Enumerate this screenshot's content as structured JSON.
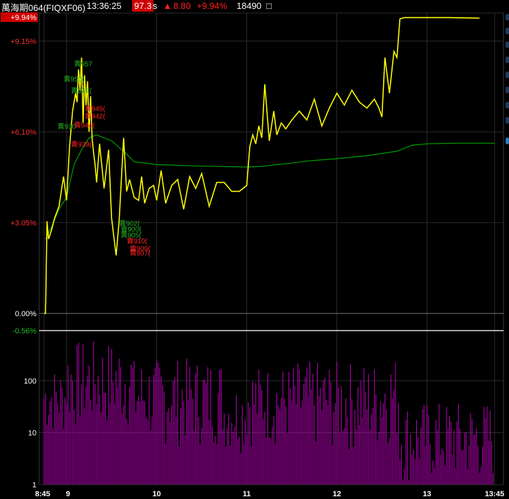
{
  "header": {
    "symbol": "萬海期064(FIQXF06)",
    "time": "13:36:25",
    "price": "97.3",
    "price_suffix": "s",
    "change_arrow": "▲",
    "change": "8.80",
    "change_pct": "+9.94%",
    "volume": "18490",
    "volume_suffix": "□"
  },
  "colors": {
    "price_line": "#ffff00",
    "avg_line": "#00a000",
    "volume_bars": "#c000c0",
    "up_label": "#ff2020",
    "down_label": "#20b020",
    "grid": "#2c2c2c",
    "background": "#000000"
  },
  "chart_data": [
    {
      "type": "line",
      "panel": "price",
      "y_unit": "%",
      "ylim": [
        -0.56,
        9.94
      ],
      "y_tick_labels": [
        "+9.94%",
        "+9.15%",
        "+6.10%",
        "+3.05%",
        "0.00%",
        "-0.56%"
      ],
      "y_tick_values": [
        9.94,
        9.15,
        6.1,
        3.05,
        0.0,
        -0.56
      ],
      "x_tick_labels": [
        "8:45",
        "9",
        "10",
        "11",
        "12",
        "13",
        "13:45"
      ],
      "x_tick_values": [
        "08:45",
        "09:00",
        "10:00",
        "11:00",
        "12:00",
        "13:00",
        "13:45"
      ],
      "series": [
        {
          "role": "price",
          "x": [
            "08:45",
            "08:46",
            "08:47",
            "08:48",
            "08:50",
            "08:52",
            "08:55",
            "08:58",
            "09:00",
            "09:02",
            "09:04",
            "09:06",
            "09:07",
            "09:08",
            "09:09",
            "09:10",
            "09:11",
            "09:12",
            "09:13",
            "09:14",
            "09:15",
            "09:16",
            "09:17",
            "09:18",
            "09:19",
            "09:20",
            "09:22",
            "09:25",
            "09:28",
            "09:30",
            "09:33",
            "09:35",
            "09:38",
            "09:40",
            "09:42",
            "09:45",
            "09:48",
            "09:50",
            "09:52",
            "09:55",
            "09:58",
            "10:00",
            "10:03",
            "10:06",
            "10:10",
            "10:14",
            "10:18",
            "10:22",
            "10:26",
            "10:30",
            "10:35",
            "10:40",
            "10:45",
            "10:50",
            "10:55",
            "11:00",
            "11:02",
            "11:04",
            "11:06",
            "11:08",
            "11:10",
            "11:12",
            "11:15",
            "11:18",
            "11:20",
            "11:23",
            "11:26",
            "11:30",
            "11:35",
            "11:40",
            "11:45",
            "11:50",
            "11:55",
            "12:00",
            "12:05",
            "12:10",
            "12:15",
            "12:20",
            "12:25",
            "12:28",
            "12:30",
            "12:32",
            "12:35",
            "12:38",
            "12:40",
            "12:42",
            "12:45",
            "12:50",
            "13:00",
            "13:15",
            "13:35"
          ],
          "y": [
            0.0,
            0.0,
            3.1,
            2.5,
            2.8,
            3.2,
            3.6,
            4.6,
            3.8,
            5.6,
            6.8,
            7.4,
            7.1,
            8.2,
            7.5,
            8.6,
            6.4,
            8.0,
            7.0,
            7.8,
            6.1,
            7.3,
            5.9,
            5.4,
            5.0,
            4.4,
            5.7,
            4.2,
            5.5,
            3.2,
            1.95,
            3.1,
            5.9,
            4.1,
            4.5,
            3.9,
            3.8,
            4.6,
            3.7,
            4.2,
            4.3,
            3.8,
            4.8,
            3.7,
            4.3,
            4.5,
            3.5,
            4.6,
            4.2,
            4.7,
            3.6,
            4.4,
            4.4,
            4.1,
            4.1,
            4.3,
            5.6,
            6.0,
            5.7,
            6.3,
            5.9,
            7.7,
            5.8,
            6.8,
            6.0,
            6.4,
            6.2,
            6.5,
            6.8,
            6.5,
            7.2,
            6.3,
            6.9,
            7.4,
            7.0,
            7.5,
            7.1,
            6.9,
            7.2,
            6.9,
            6.6,
            8.6,
            7.4,
            8.8,
            8.6,
            9.9,
            9.94,
            9.94,
            9.94,
            9.94,
            9.92
          ]
        },
        {
          "role": "average",
          "x": [
            "08:46",
            "08:50",
            "08:55",
            "09:00",
            "09:05",
            "09:10",
            "09:15",
            "09:20",
            "09:30",
            "09:40",
            "09:45",
            "10:00",
            "10:30",
            "11:00",
            "11:10",
            "11:20",
            "11:30",
            "11:40",
            "12:00",
            "12:20",
            "12:40",
            "12:50",
            "13:00",
            "13:20",
            "13:45"
          ],
          "y": [
            2.5,
            2.9,
            3.5,
            3.9,
            5.0,
            5.5,
            5.9,
            6.0,
            5.8,
            5.35,
            5.1,
            5.0,
            4.95,
            4.92,
            4.94,
            5.0,
            5.05,
            5.12,
            5.2,
            5.3,
            5.45,
            5.65,
            5.7,
            5.72,
            5.72
          ]
        }
      ],
      "annotations": [
        {
          "text": "賣957",
          "color": "down",
          "x": "09:05",
          "y": 8.3
        },
        {
          "text": "賣950(",
          "color": "down",
          "x": "08:58",
          "y": 7.8
        },
        {
          "text": "賣947(",
          "color": "down",
          "x": "09:03",
          "y": 7.4
        },
        {
          "text": "賣930",
          "color": "down",
          "x": "08:54",
          "y": 6.2
        },
        {
          "text": "賣945(",
          "color": "up",
          "x": "09:12",
          "y": 6.8
        },
        {
          "text": "賣942(",
          "color": "up",
          "x": "09:12",
          "y": 6.55
        },
        {
          "text": "賣944(",
          "color": "up",
          "x": "09:05",
          "y": 6.25
        },
        {
          "text": "賣939(",
          "color": "up",
          "x": "09:03",
          "y": 5.6
        },
        {
          "text": "賣902(",
          "color": "down",
          "x": "09:35",
          "y": 2.95
        },
        {
          "text": "賣900(",
          "color": "down",
          "x": "09:36",
          "y": 2.75
        },
        {
          "text": "賣905(",
          "color": "down",
          "x": "09:36",
          "y": 2.55
        },
        {
          "text": "賣910(",
          "color": "up",
          "x": "09:40",
          "y": 2.35
        },
        {
          "text": "賣909(",
          "color": "up",
          "x": "09:42",
          "y": 2.1
        },
        {
          "text": "賣907(",
          "color": "up",
          "x": "09:42",
          "y": 1.95
        }
      ]
    },
    {
      "type": "bar",
      "panel": "volume",
      "y_scale": "log",
      "ylim": [
        1,
        700
      ],
      "y_tick_labels": [
        "100",
        "10",
        "1"
      ],
      "y_tick_values": [
        100,
        10,
        1
      ],
      "x_tick_labels": [
        "8:45",
        "9",
        "10",
        "11",
        "12",
        "13",
        "13:45"
      ],
      "x_start": "08:45",
      "x_end": "13:45",
      "bar_interval_minutes": 1,
      "ranges": [
        {
          "from": "08:45",
          "to": "09:00",
          "min": 8,
          "max": 180
        },
        {
          "from": "09:00",
          "to": "09:45",
          "min": 10,
          "max": 600
        },
        {
          "from": "09:45",
          "to": "10:45",
          "min": 5,
          "max": 280
        },
        {
          "from": "10:45",
          "to": "11:00",
          "min": 4,
          "max": 90
        },
        {
          "from": "11:00",
          "to": "11:30",
          "min": 5,
          "max": 200
        },
        {
          "from": "11:30",
          "to": "12:30",
          "min": 4,
          "max": 240
        },
        {
          "from": "12:30",
          "to": "12:42",
          "min": 5,
          "max": 320
        },
        {
          "from": "12:42",
          "to": "13:45",
          "min": 1,
          "max": 40
        }
      ]
    }
  ]
}
